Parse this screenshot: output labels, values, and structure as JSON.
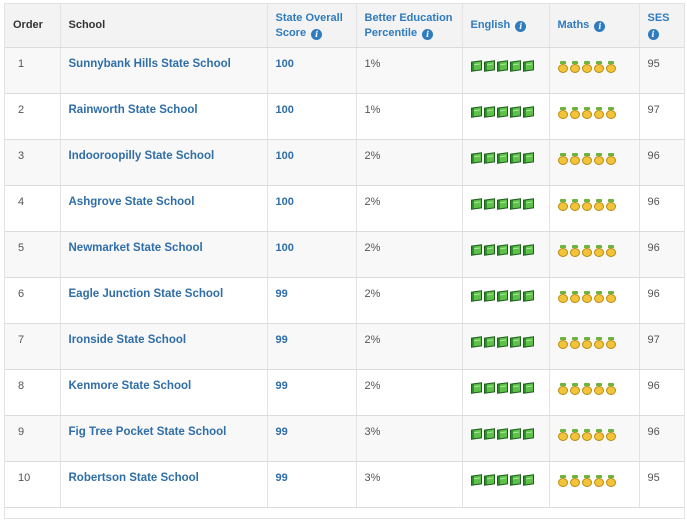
{
  "headers": {
    "order": "Order",
    "school": "School",
    "score_line1": "State Overall",
    "score_line2": "Score",
    "percentile_line1": "Better Education",
    "percentile_line2": "Percentile",
    "english": "English",
    "maths": "Maths",
    "ses": "SES"
  },
  "info_icon_glyph": "i",
  "colors": {
    "link_blue": "#2f6ea8",
    "header_bg": "#f3f3f3",
    "english_icon": "#5fc14a",
    "maths_icon": "#f3c43a"
  },
  "icons": {
    "english": "green-book-icon",
    "maths": "gold-medal-icon"
  },
  "rows": [
    {
      "order": "1",
      "school": "Sunnybank Hills State School",
      "score": "100",
      "percentile": "1%",
      "english": 5,
      "maths": 5,
      "ses": "95"
    },
    {
      "order": "2",
      "school": "Rainworth State School",
      "score": "100",
      "percentile": "1%",
      "english": 5,
      "maths": 5,
      "ses": "97"
    },
    {
      "order": "3",
      "school": "Indooroopilly State School",
      "score": "100",
      "percentile": "2%",
      "english": 5,
      "maths": 5,
      "ses": "96"
    },
    {
      "order": "4",
      "school": "Ashgrove State School",
      "score": "100",
      "percentile": "2%",
      "english": 5,
      "maths": 5,
      "ses": "96"
    },
    {
      "order": "5",
      "school": "Newmarket State School",
      "score": "100",
      "percentile": "2%",
      "english": 5,
      "maths": 5,
      "ses": "96"
    },
    {
      "order": "6",
      "school": "Eagle Junction State School",
      "score": "99",
      "percentile": "2%",
      "english": 5,
      "maths": 5,
      "ses": "96"
    },
    {
      "order": "7",
      "school": "Ironside State School",
      "score": "99",
      "percentile": "2%",
      "english": 5,
      "maths": 5,
      "ses": "97"
    },
    {
      "order": "8",
      "school": "Kenmore State School",
      "score": "99",
      "percentile": "2%",
      "english": 5,
      "maths": 5,
      "ses": "96"
    },
    {
      "order": "9",
      "school": "Fig Tree Pocket State School",
      "score": "99",
      "percentile": "3%",
      "english": 5,
      "maths": 5,
      "ses": "96"
    },
    {
      "order": "10",
      "school": "Robertson State School",
      "score": "99",
      "percentile": "3%",
      "english": 5,
      "maths": 5,
      "ses": "95"
    }
  ]
}
